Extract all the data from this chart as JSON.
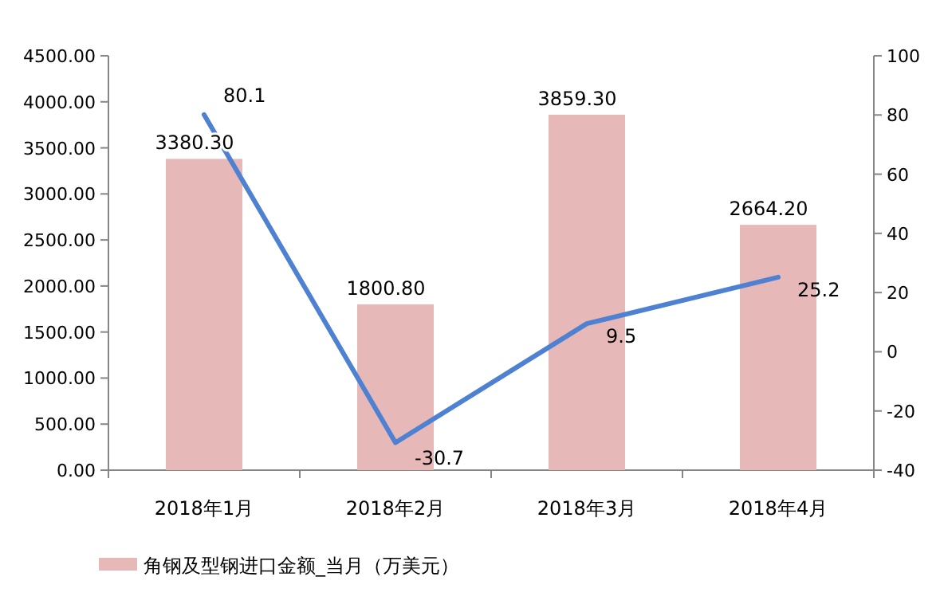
{
  "chart_data": {
    "type": "bar",
    "categories": [
      "2018年1月",
      "2018年2月",
      "2018年3月",
      "2018年4月"
    ],
    "series": [
      {
        "name": "角钢及型钢进口金额_当月（万美元）",
        "color": "#e6b9b8",
        "values": [
          3380.3,
          1800.8,
          3859.3,
          2664.2
        ],
        "value_labels": [
          "3380.30",
          "1800.80",
          "3859.30",
          "2664.20"
        ]
      },
      {
        "type": "line",
        "axis": "y2",
        "color": "#4f81d3",
        "values": [
          80.1,
          -30.7,
          9.5,
          25.2
        ],
        "value_labels": [
          "80.1",
          "-30.7",
          "9.5",
          "25.2"
        ]
      }
    ],
    "ylim": [
      0,
      4500
    ],
    "yticks": [
      {
        "value": 0,
        "label": "0.00"
      },
      {
        "value": 500,
        "label": "500.00"
      },
      {
        "value": 1000,
        "label": "1000.00"
      },
      {
        "value": 1500,
        "label": "1500.00"
      },
      {
        "value": 2000,
        "label": "2000.00"
      },
      {
        "value": 2500,
        "label": "2500.00"
      },
      {
        "value": 3000,
        "label": "3000.00"
      },
      {
        "value": 3500,
        "label": "3500.00"
      },
      {
        "value": 4000,
        "label": "4000.00"
      },
      {
        "value": 4500,
        "label": "4500.00"
      }
    ],
    "y2lim": [
      -40,
      100
    ],
    "y2ticks": [
      -40,
      -20,
      0,
      20,
      40,
      60,
      80,
      100
    ],
    "grid": false,
    "legend": "bottom",
    "marker": "none",
    "line_style": "solid"
  }
}
